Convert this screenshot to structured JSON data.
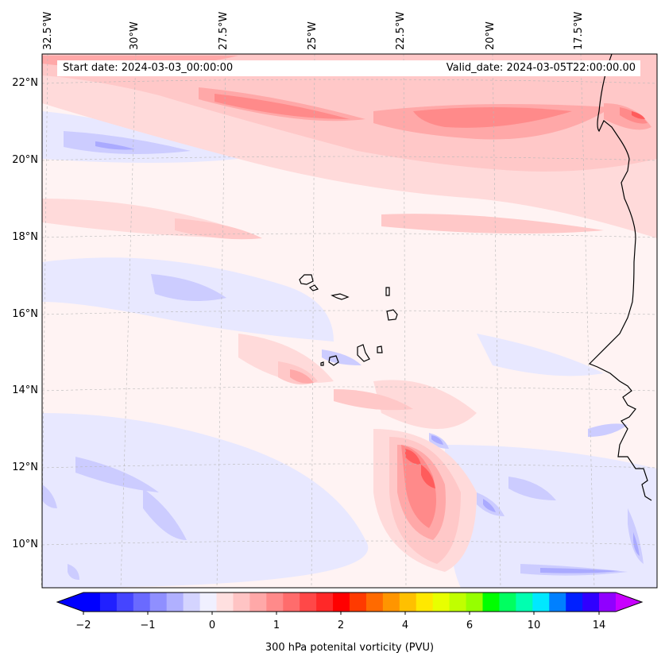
{
  "header": {
    "start_date": "Start date: 2024-03-03_00:00:00",
    "valid_date": "Valid_date: 2024-03-05T22:00:00.00"
  },
  "map": {
    "longitude_labels": [
      "32.5°W",
      "30°W",
      "27.5°W",
      "25°W",
      "22.5°W",
      "20°W",
      "17.5°W"
    ],
    "latitude_labels": [
      "22°N",
      "20°N",
      "18°N",
      "16°N",
      "14°N",
      "12°N",
      "10°N"
    ],
    "colors": {
      "neg_light": "#f0f0ff",
      "neg_mid": "#ccccff",
      "neg_dark": "#aaaaff",
      "pos_1": "#ffe4e4",
      "pos_2": "#ffcccc",
      "pos_3": "#ffaaaa",
      "pos_4": "#ff8a8a",
      "pos_5": "#ff5a5a",
      "coast": "#000000"
    }
  },
  "colorbar": {
    "label": "300 hPa potenital vorticity (PVU)",
    "ticks": [
      "−2",
      "−1",
      "0",
      "1",
      "2",
      "4",
      "6",
      "10",
      "14"
    ],
    "colors": [
      "#0000ff",
      "#2020ff",
      "#4545ff",
      "#6a6aff",
      "#8f8fff",
      "#b0b0ff",
      "#d4d4ff",
      "#f0f0ff",
      "#ffe0e0",
      "#ffc4c4",
      "#ffa8a8",
      "#ff8a8a",
      "#ff6c6c",
      "#ff4848",
      "#ff2828",
      "#ff0000",
      "#ff3a00",
      "#ff6a00",
      "#ff9500",
      "#ffc000",
      "#ffe800",
      "#e8ff00",
      "#c0ff00",
      "#96ff00",
      "#00ff00",
      "#00ff60",
      "#00ffb0",
      "#00e8ff",
      "#0080ff",
      "#0020ff",
      "#3000ff",
      "#9000ff"
    ],
    "under_color": "#0000ff",
    "over_color": "#c800ff"
  }
}
